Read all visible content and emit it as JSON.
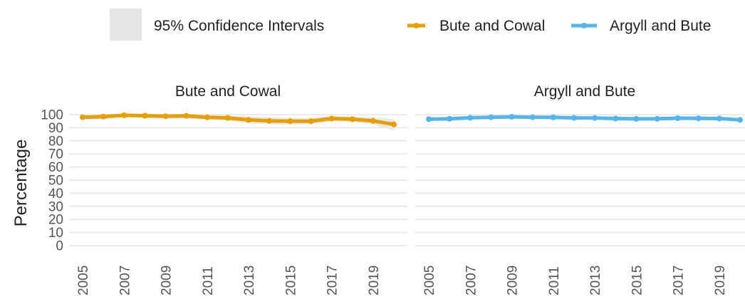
{
  "chart_data": {
    "type": "line",
    "ylabel": "Percentage",
    "ylim": [
      0,
      100
    ],
    "yticks": [
      0,
      10,
      20,
      30,
      40,
      50,
      60,
      70,
      80,
      90,
      100
    ],
    "xlim": [
      2005,
      2020
    ],
    "xticks": [
      "2005",
      "2007",
      "2009",
      "2011",
      "2013",
      "2015",
      "2017",
      "2019"
    ],
    "grid": true,
    "legend": {
      "position": "top",
      "ci_label": "95% Confidence Intervals",
      "ci_color": "#e5e5e5"
    },
    "x": [
      2005,
      2006,
      2007,
      2008,
      2009,
      2010,
      2011,
      2012,
      2013,
      2014,
      2015,
      2016,
      2017,
      2018,
      2019,
      2020
    ],
    "series": [
      {
        "name": "Bute and Cowal",
        "color": "#E69F00",
        "values": [
          98,
          98.5,
          99.5,
          99.2,
          98.8,
          99,
          98,
          97.5,
          96,
          95.2,
          95,
          95,
          97,
          96.5,
          95.2,
          92.5
        ],
        "ci_lower": [
          96,
          96.5,
          98,
          97.5,
          97,
          97,
          96,
          95.5,
          93.5,
          92.5,
          92.5,
          92.5,
          95,
          94.5,
          92.5,
          88
        ],
        "ci_upper": [
          99.5,
          100,
          100,
          100,
          100,
          100,
          99.5,
          99,
          98.5,
          98,
          97.5,
          97.5,
          99,
          98.5,
          98,
          96.5
        ]
      },
      {
        "name": "Argyll and Bute",
        "color": "#56B4E9",
        "values": [
          96.5,
          96.8,
          97.6,
          98,
          98.3,
          98,
          97.9,
          97.5,
          97.4,
          97,
          96.8,
          96.8,
          97.3,
          97.2,
          97,
          96
        ],
        "ci_lower": [
          95.5,
          96,
          97,
          97.3,
          97.7,
          97.4,
          97.3,
          96.9,
          96.8,
          96.4,
          96.2,
          96.2,
          96.7,
          96.6,
          96.3,
          95
        ],
        "ci_upper": [
          97.5,
          97.6,
          98.2,
          98.7,
          98.9,
          98.6,
          98.5,
          98.1,
          98,
          97.6,
          97.4,
          97.4,
          97.9,
          97.8,
          97.7,
          97
        ]
      }
    ]
  }
}
